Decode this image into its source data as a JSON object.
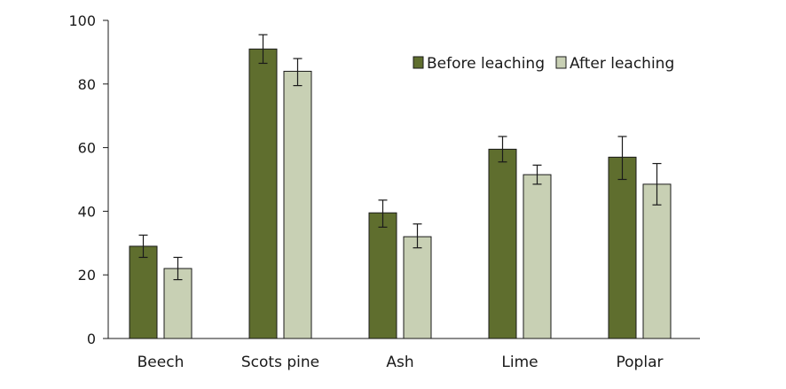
{
  "chart_data": {
    "type": "bar",
    "categories": [
      "Beech",
      "Scots pine",
      "Ash",
      "Lime",
      "Poplar"
    ],
    "series": [
      {
        "name": "Before leaching",
        "color": "#5f6e2e",
        "values": [
          29,
          91,
          39.5,
          59.5,
          57
        ],
        "err_low": [
          25.5,
          86.5,
          35,
          55.5,
          50
        ],
        "err_high": [
          32.5,
          95.5,
          43.5,
          63.5,
          63.5
        ]
      },
      {
        "name": "After leaching",
        "color": "#c8d0b4",
        "values": [
          22,
          84,
          32,
          51.5,
          48.5
        ],
        "err_low": [
          18.5,
          79.5,
          28.5,
          48.5,
          42
        ],
        "err_high": [
          25.5,
          88,
          36,
          54.5,
          55
        ]
      }
    ],
    "yticks": [
      0,
      20,
      40,
      60,
      80,
      100
    ],
    "ylim": [
      0,
      100
    ],
    "legend_position": "top-right",
    "grid": false
  }
}
